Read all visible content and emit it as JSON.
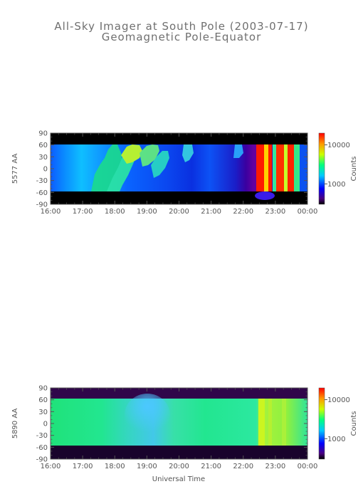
{
  "chart_data": {
    "type": "heatmap",
    "title": "All-Sky Imager at South Pole (2003-07-17)",
    "subtitle": "Geomagnetic Pole-Equator",
    "xlabel": "Universal Time",
    "x_ticks": [
      "16:00",
      "17:00",
      "18:00",
      "19:00",
      "20:00",
      "21:00",
      "22:00",
      "23:00",
      "00:00"
    ],
    "xlim": [
      "16:00",
      "00:00"
    ],
    "y_ticks": [
      90,
      60,
      30,
      0,
      -30,
      -60,
      -90
    ],
    "ylim": [
      -90,
      90
    ],
    "colorbar": {
      "label": "Counts",
      "ticks": [
        10000,
        1000
      ],
      "tick_labels": [
        "10000",
        "1000"
      ],
      "scale": "log"
    },
    "panels": [
      {
        "ylabel": "5577 AA",
        "valid_y_range": [
          -55,
          62
        ],
        "features": [
          {
            "time_start": "17:40",
            "time_end": "19:30",
            "level": "green-yellow arcs"
          },
          {
            "time_start": "22:25",
            "time_end": "23:45",
            "level": "red/yellow intense"
          }
        ]
      },
      {
        "ylabel": "5890 AA",
        "valid_y_range": [
          -55,
          62
        ],
        "features": [
          {
            "time_start": "18:30",
            "time_end": "19:40",
            "level": "light blue region"
          },
          {
            "time_start": "22:25",
            "time_end": "23:35",
            "level": "yellow-green bands"
          }
        ]
      }
    ]
  }
}
